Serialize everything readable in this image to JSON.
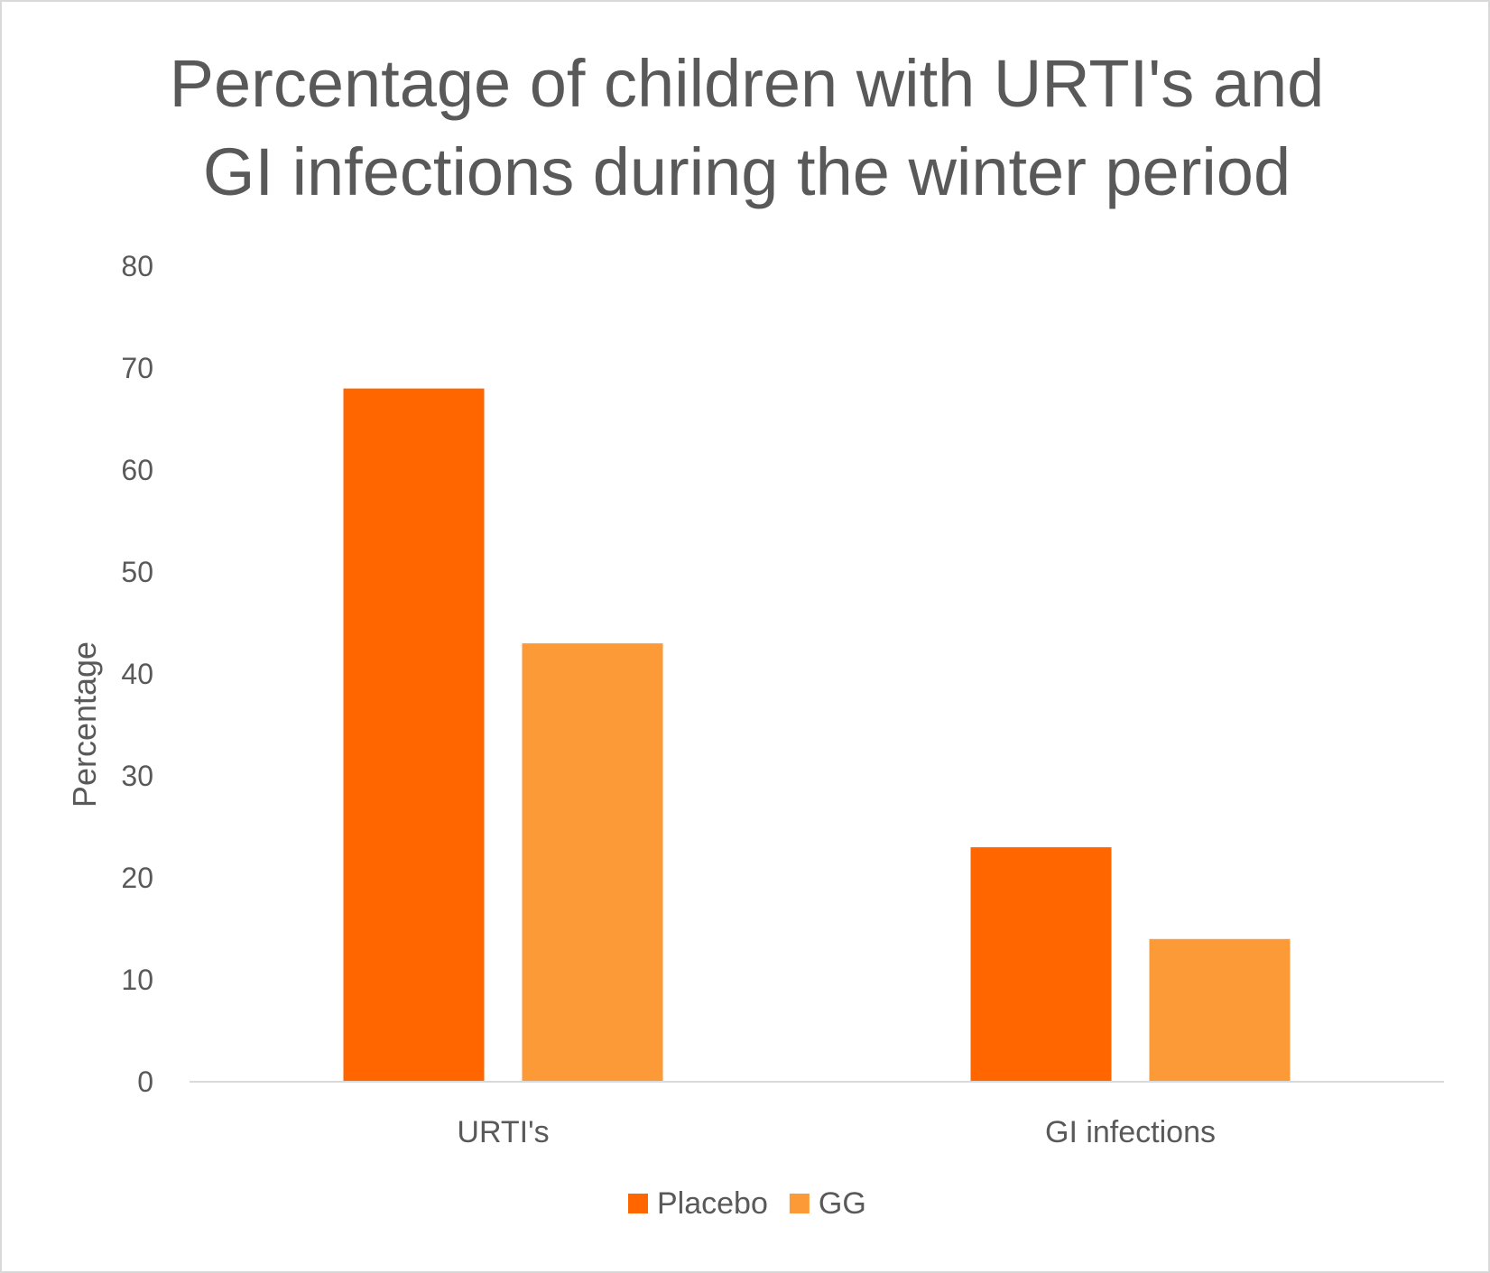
{
  "chart_data": {
    "type": "bar",
    "title_lines": [
      "Percentage of children with URTI's and",
      "GI infections during the winter period"
    ],
    "categories": [
      "URTI's",
      "GI infections"
    ],
    "series": [
      {
        "name": "Placebo",
        "values": [
          68,
          23
        ],
        "color": "#ff6600"
      },
      {
        "name": "GG",
        "values": [
          43,
          14
        ],
        "color": "#fd9a38"
      }
    ],
    "xlabel": "",
    "ylabel": "Percentage",
    "ylim": [
      0,
      80
    ],
    "yticks": [
      "0",
      "10",
      "20",
      "30",
      "40",
      "50",
      "60",
      "70",
      "80"
    ],
    "grid": false,
    "legend": "bottom"
  }
}
